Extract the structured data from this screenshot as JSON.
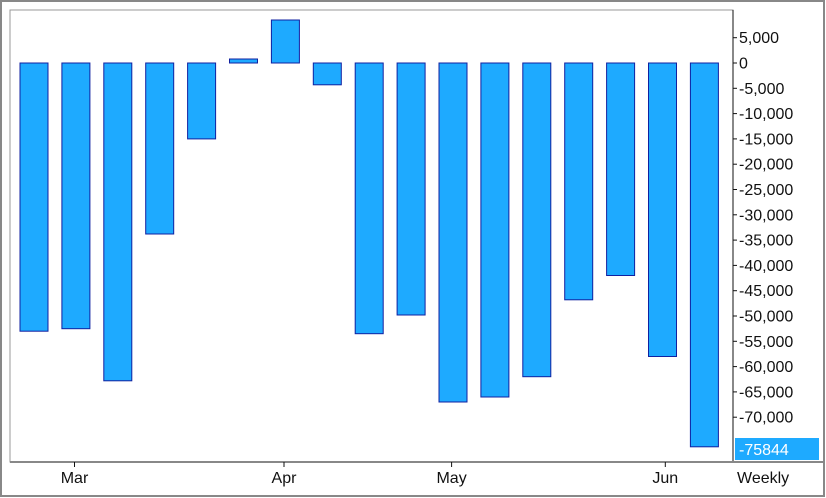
{
  "chart_data": {
    "type": "bar",
    "title": "",
    "xlabel": "",
    "ylabel": "",
    "ylim": [
      -77000,
      10000
    ],
    "grid": false,
    "bar_color": "#1eaaff",
    "bar_border_color": "#1020a0",
    "last_value_badge_color": "#1eaaff",
    "frame_color": "#888888",
    "period_label": "Weekly",
    "last_value_label": "-75844",
    "y_tick_values": [
      5000,
      0,
      -5000,
      -10000,
      -15000,
      -20000,
      -25000,
      -30000,
      -35000,
      -40000,
      -45000,
      -50000,
      -55000,
      -60000,
      -65000,
      -70000
    ],
    "y_tick_labels": [
      "5,000",
      "0",
      "-5,000",
      "-10,000",
      "-15,000",
      "-20,000",
      "-25,000",
      "-30,000",
      "-35,000",
      "-40,000",
      "-45,000",
      "-50,000",
      "-55,000",
      "-60,000",
      "-65,000",
      "-70,000"
    ],
    "x_month_labels": [
      {
        "label": "Mar",
        "bar_index": 1.3
      },
      {
        "label": "Apr",
        "bar_index": 6.3
      },
      {
        "label": "May",
        "bar_index": 10.3
      },
      {
        "label": "Jun",
        "bar_index": 15.4
      }
    ],
    "values": [
      -53000,
      -52500,
      -62800,
      -33800,
      -15000,
      800,
      8500,
      -4300,
      -53500,
      -49800,
      -67000,
      -66000,
      -62000,
      -46800,
      -42000,
      -58000,
      -75844
    ]
  }
}
